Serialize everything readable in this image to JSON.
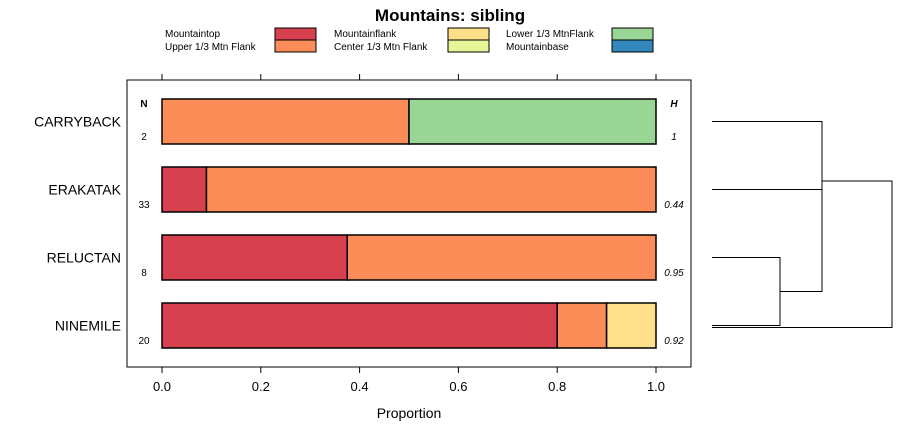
{
  "chart_data": {
    "type": "bar",
    "orientation": "horizontal",
    "stacked": true,
    "title": "Mountains: sibling",
    "xlabel": "Proportion",
    "ylabel": "",
    "xlim": [
      -0.07,
      1.07
    ],
    "xticks": [
      "0.0",
      "0.2",
      "0.4",
      "0.6",
      "0.8",
      "1.0"
    ],
    "xtick_values": [
      0,
      0.2,
      0.4,
      0.6,
      0.8,
      1.0
    ],
    "n_header": "N",
    "h_header": "H",
    "legend": [
      {
        "name": "Mountaintop",
        "color": "#d7404e"
      },
      {
        "name": "Upper 1/3 Mtn Flank",
        "color": "#fc8d59"
      },
      {
        "name": "Mountainflank",
        "color": "#fee08b"
      },
      {
        "name": "Center 1/3 Mtn Flank",
        "color": "#e6f598"
      },
      {
        "name": "Lower 1/3 MtnFlank",
        "color": "#99d594"
      },
      {
        "name": "Mountainbase",
        "color": "#3288bd"
      }
    ],
    "categories": [
      "CARRYBACK",
      "ERAKATAK",
      "RELUCTAN",
      "NINEMILE"
    ],
    "n_values": [
      "2",
      "33",
      "8",
      "20"
    ],
    "h_values": [
      "1",
      "0.44",
      "0.95",
      "0.92"
    ],
    "series": [
      {
        "name": "Mountaintop",
        "values": [
          0,
          0.09,
          0.375,
          0.8
        ]
      },
      {
        "name": "Upper 1/3 Mtn Flank",
        "values": [
          0.5,
          0.91,
          0.625,
          0.1
        ]
      },
      {
        "name": "Mountainflank",
        "values": [
          0,
          0,
          0,
          0.1
        ]
      },
      {
        "name": "Center 1/3 Mtn Flank",
        "values": [
          0,
          0,
          0,
          0
        ]
      },
      {
        "name": "Lower 1/3 MtnFlank",
        "values": [
          0.5,
          0,
          0,
          0
        ]
      },
      {
        "name": "Mountainbase",
        "values": [
          0,
          0,
          0,
          0
        ]
      }
    ],
    "dendrogram": {
      "merges": [
        {
          "left": "RELUCTAN",
          "right": "NINEMILE",
          "height": 0.1
        },
        {
          "left": "ERAKATAK",
          "right": "cluster-1",
          "height": 0.3
        },
        {
          "left": "CARRYBACK",
          "right": "cluster-2",
          "height": 0.6
        }
      ]
    }
  }
}
